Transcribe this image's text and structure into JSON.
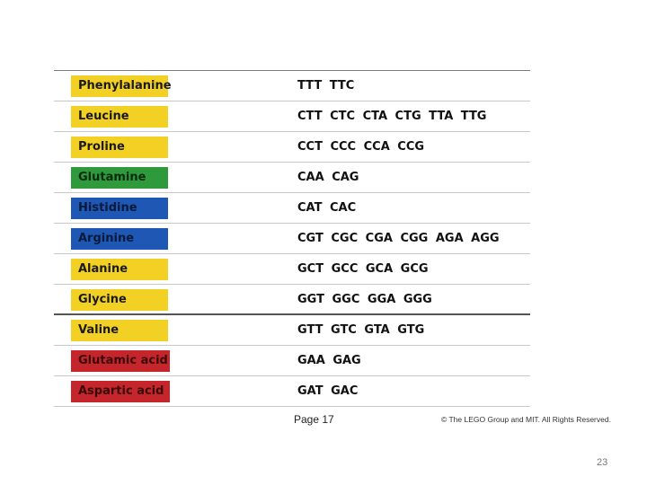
{
  "rows": [
    {
      "name": "Phenylalanine",
      "codons": "TTT TTC",
      "bg": "#f2d024",
      "fg": "#1a1a1a"
    },
    {
      "name": "Leucine",
      "codons": "CTT CTC CTA CTG TTA TTG",
      "bg": "#f2d024",
      "fg": "#1a1a1a"
    },
    {
      "name": "Proline",
      "codons": "CCT CCC CCA CCG",
      "bg": "#f2d024",
      "fg": "#1a1a1a"
    },
    {
      "name": "Glutamine",
      "codons": "CAA CAG",
      "bg": "#2e9a3c",
      "fg": "#0d2a10"
    },
    {
      "name": "Histidine",
      "codons": "CAT CAC",
      "bg": "#1f57b5",
      "fg": "#0a1a3a"
    },
    {
      "name": "Arginine",
      "codons": "CGT CGC CGA CGG AGA AGG",
      "bg": "#1f57b5",
      "fg": "#0a1a3a"
    },
    {
      "name": "Alanine",
      "codons": "GCT GCC GCA GCG",
      "bg": "#f2d024",
      "fg": "#1a1a1a"
    },
    {
      "name": "Glycine",
      "codons": "GGT GGC GGA GGG",
      "bg": "#f2d024",
      "fg": "#1a1a1a"
    },
    {
      "name": "Valine",
      "codons": "GTT GTC GTA GTG",
      "bg": "#f2d024",
      "fg": "#1a1a1a"
    },
    {
      "name": "Glutamic acid",
      "codons": "GAA GAG",
      "bg": "#c4262c",
      "fg": "#3a0a0a"
    },
    {
      "name": "Aspartic acid",
      "codons": "GAT GAC",
      "bg": "#c4262c",
      "fg": "#3a0a0a"
    }
  ],
  "footer": {
    "page_label": "Page 17",
    "copyright": "© The LEGO Group and MIT. All Rights Reserved."
  },
  "slide_number": "23"
}
